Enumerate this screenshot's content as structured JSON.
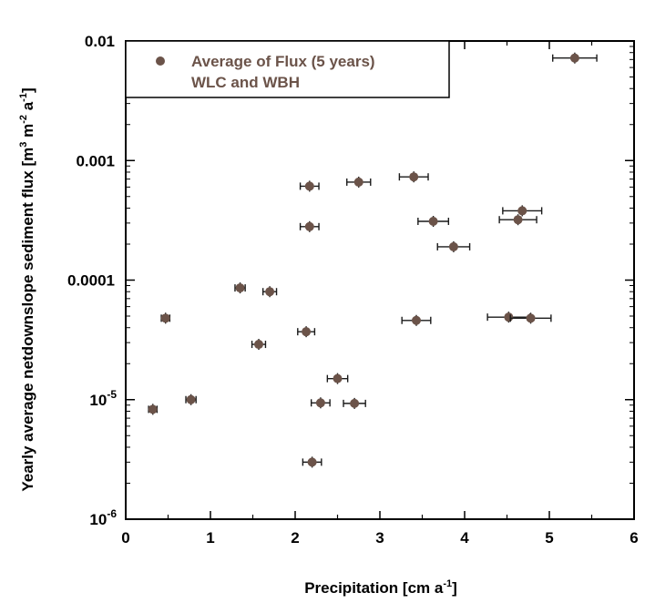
{
  "chart_data": {
    "type": "scatter",
    "xlabel": "Precipitation [cm a",
    "xlabel_sup": "-1",
    "xlabel_end": "]",
    "ylabel": "Yearly average netdownslope sediment flux [m",
    "ylabel_sup1": "3",
    "ylabel_mid": " m",
    "ylabel_sup2": "-2",
    "ylabel_mid2": " a",
    "ylabel_sup3": "-1",
    "ylabel_end": "]",
    "xlim": [
      0,
      6
    ],
    "ylim": [
      1e-06,
      0.01
    ],
    "yscale": "log",
    "x_ticks": [
      "0",
      "1",
      "2",
      "3",
      "4",
      "5",
      "6"
    ],
    "y_ticks": [
      {
        "value": 0.01,
        "label": "0.01"
      },
      {
        "value": 0.001,
        "label": "0.001"
      },
      {
        "value": 0.0001,
        "label": "0.0001"
      },
      {
        "value": 1e-05,
        "base": "10",
        "exp": "-5"
      },
      {
        "value": 1e-06,
        "base": "10",
        "exp": "-6"
      }
    ],
    "legend": {
      "position": "top-left",
      "lines": [
        "Average of Flux  (5 years)",
        "WLC and WBH"
      ]
    },
    "marker_color": "#6b5349",
    "series": [
      {
        "points": [
          {
            "x": 0.32,
            "y": 8.3e-06,
            "xerr": 0.05
          },
          {
            "x": 0.47,
            "y": 4.8e-05,
            "xerr": 0.05
          },
          {
            "x": 0.77,
            "y": 1e-05,
            "xerr": 0.06
          },
          {
            "x": 1.35,
            "y": 8.6e-05,
            "xerr": 0.06
          },
          {
            "x": 1.57,
            "y": 2.9e-05,
            "xerr": 0.08
          },
          {
            "x": 1.7,
            "y": 8e-05,
            "xerr": 0.08
          },
          {
            "x": 2.13,
            "y": 3.7e-05,
            "xerr": 0.1
          },
          {
            "x": 2.17,
            "y": 0.00028,
            "xerr": 0.11
          },
          {
            "x": 2.17,
            "y": 0.00061,
            "xerr": 0.11
          },
          {
            "x": 2.2,
            "y": 3e-06,
            "xerr": 0.11
          },
          {
            "x": 2.3,
            "y": 9.4e-06,
            "xerr": 0.11
          },
          {
            "x": 2.5,
            "y": 1.5e-05,
            "xerr": 0.12
          },
          {
            "x": 2.7,
            "y": 9.3e-06,
            "xerr": 0.13
          },
          {
            "x": 2.75,
            "y": 0.00066,
            "xerr": 0.14
          },
          {
            "x": 3.4,
            "y": 0.00073,
            "xerr": 0.17
          },
          {
            "x": 3.43,
            "y": 4.6e-05,
            "xerr": 0.17
          },
          {
            "x": 3.63,
            "y": 0.00031,
            "xerr": 0.18
          },
          {
            "x": 3.87,
            "y": 0.00019,
            "xerr": 0.19
          },
          {
            "x": 4.52,
            "y": 4.9e-05,
            "xerr": 0.25
          },
          {
            "x": 4.63,
            "y": 0.00032,
            "xerr": 0.22
          },
          {
            "x": 4.68,
            "y": 0.00038,
            "xerr": 0.23
          },
          {
            "x": 4.78,
            "y": 4.8e-05,
            "xerr": 0.24
          },
          {
            "x": 5.3,
            "y": 0.0072,
            "xerr": 0.26
          }
        ]
      }
    ]
  }
}
